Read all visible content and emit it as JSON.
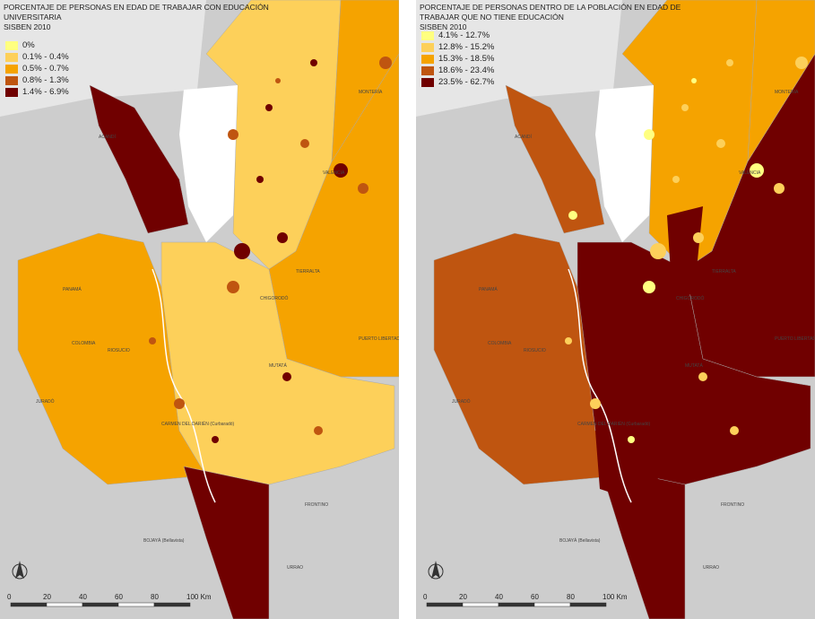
{
  "maps": [
    {
      "title": "PORCENTAJE DE PERSONAS EN EDAD DE TRABAJAR CON EDUCACIÓN UNIVERSITARIA",
      "subtitle": "SISBEN 2010",
      "legend": [
        {
          "label": "0%",
          "color": "#ffff80"
        },
        {
          "label": "0.1% - 0.4%",
          "color": "#fdd05a"
        },
        {
          "label": "0.5% - 0.7%",
          "color": "#f5a300"
        },
        {
          "label": "0.8% - 1.3%",
          "color": "#bf5510"
        },
        {
          "label": "1.4% - 6.9%",
          "color": "#700000"
        }
      ]
    },
    {
      "title": "PORCENTAJE DE PERSONAS DENTRO DE LA POBLACIÓN EN EDAD DE TRABAJAR QUE NO TIENE EDUCACIÓN",
      "subtitle": "SISBEN 2010",
      "legend": [
        {
          "label": "4.1% - 12.7%",
          "color": "#ffff80"
        },
        {
          "label": "12.8% - 15.2%",
          "color": "#fdd05a"
        },
        {
          "label": "15.3% - 18.5%",
          "color": "#f5a300"
        },
        {
          "label": "18.6% - 23.4%",
          "color": "#bf5510"
        },
        {
          "label": "23.5% - 62.7%",
          "color": "#700000"
        }
      ]
    }
  ],
  "scale_labels": [
    "0",
    "20",
    "40",
    "60",
    "80",
    "100 Km"
  ],
  "place_labels": [
    "PANAMÁ",
    "COLOMBIA",
    "ACANDÍ",
    "RIOSUCIO",
    "CARMEN DEL DARIÉN (Curbaradó)",
    "MUTATÁ",
    "TIERRALTA",
    "MONTERÍA",
    "VALENCIA",
    "CHIGORODÓ",
    "JURADÓ",
    "BOJAYÁ (Bellavista)",
    "FRONTINO",
    "URRAO",
    "PUERTO LIBERTADOR"
  ]
}
